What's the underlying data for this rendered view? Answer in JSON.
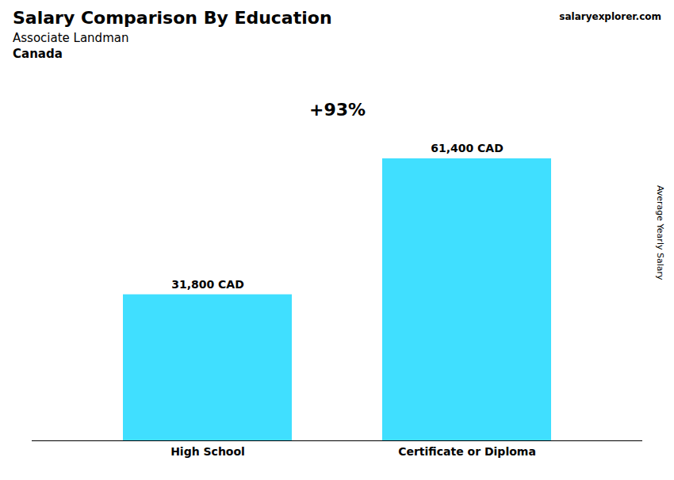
{
  "chart_data": {
    "type": "bar",
    "title": "Salary Comparison By Education",
    "subtitle": "Associate Landman",
    "ylabel": "Average Yearly Salary",
    "annotations": [
      "+93%",
      "Canada",
      "salaryexplorer.com"
    ],
    "categories": [
      "High School",
      "Certificate or Diploma"
    ],
    "values": [
      31800,
      61400
    ],
    "value_labels": [
      "31,800 CAD",
      "61,400 CAD"
    ],
    "data_labels": true,
    "color": "#00d4ff",
    "ylim": [
      0,
      70000
    ],
    "tick_labels": "x",
    "grid": false
  }
}
